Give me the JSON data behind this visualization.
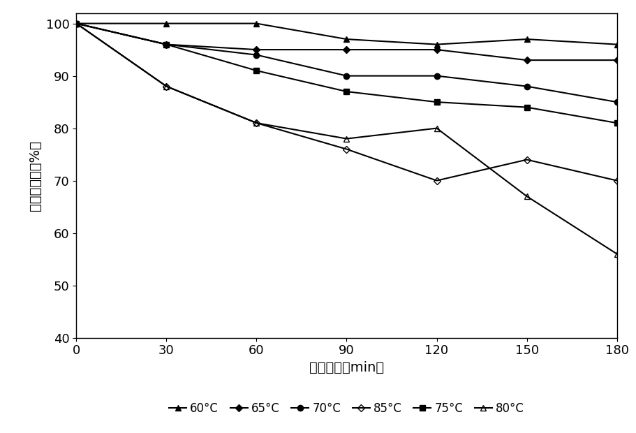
{
  "x": [
    0,
    30,
    60,
    90,
    120,
    150,
    180
  ],
  "series": [
    {
      "label": "60°C",
      "values": [
        100,
        100,
        100,
        97,
        96,
        97,
        96
      ],
      "color": "#000000",
      "marker": "^",
      "markersize": 6,
      "fillstyle": "full",
      "linestyle": "-",
      "linewidth": 1.5
    },
    {
      "label": "65°C",
      "values": [
        100,
        96,
        95,
        95,
        95,
        93,
        93
      ],
      "color": "#000000",
      "marker": "D",
      "markersize": 5,
      "fillstyle": "full",
      "linestyle": "-",
      "linewidth": 1.5
    },
    {
      "label": "70°C",
      "values": [
        100,
        96,
        94,
        90,
        90,
        88,
        85
      ],
      "color": "#000000",
      "marker": "o",
      "markersize": 6,
      "fillstyle": "full",
      "linestyle": "-",
      "linewidth": 1.5
    },
    {
      "label": "85°C",
      "values": [
        100,
        88,
        81,
        76,
        70,
        74,
        70
      ],
      "color": "#000000",
      "marker": "D",
      "markersize": 5,
      "fillstyle": "none",
      "linestyle": "-",
      "linewidth": 1.5
    },
    {
      "label": "75°C",
      "values": [
        100,
        96,
        91,
        87,
        85,
        84,
        81
      ],
      "color": "#000000",
      "marker": "s",
      "markersize": 6,
      "fillstyle": "full",
      "linestyle": "-",
      "linewidth": 1.5
    },
    {
      "label": "80°C",
      "values": [
        100,
        88,
        81,
        78,
        80,
        67,
        56
      ],
      "color": "#000000",
      "marker": "^",
      "markersize": 6,
      "fillstyle": "none",
      "linestyle": "-",
      "linewidth": 1.5
    }
  ],
  "xlabel": "处理时间（min）",
  "ylabel": "酶活保存率（%）",
  "xlim": [
    0,
    180
  ],
  "ylim": [
    40,
    102
  ],
  "xticks": [
    0,
    30,
    60,
    90,
    120,
    150,
    180
  ],
  "yticks": [
    40,
    50,
    60,
    70,
    80,
    90,
    100
  ],
  "background_color": "#ffffff",
  "xlabel_fontsize": 14,
  "ylabel_fontsize": 14,
  "tick_fontsize": 13,
  "legend_fontsize": 12
}
